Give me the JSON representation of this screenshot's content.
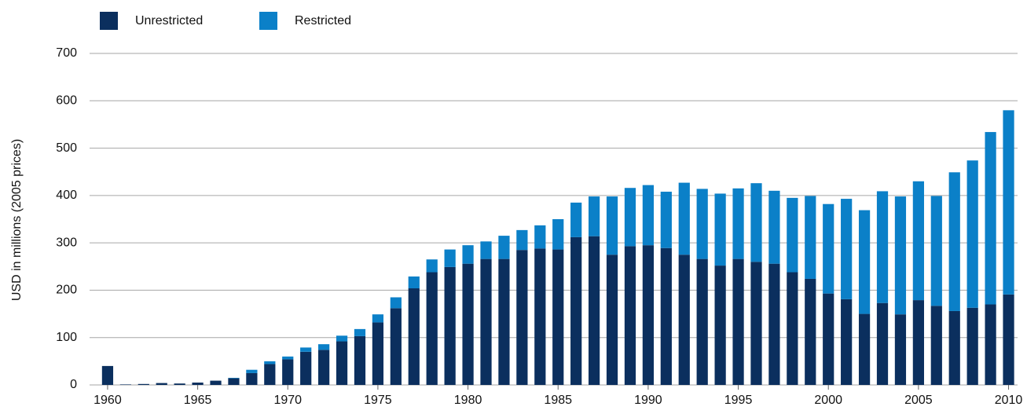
{
  "chart_data": {
    "type": "bar",
    "stacked": true,
    "y_label": "USD in millions (2005 prices)",
    "x": [
      1960,
      1961,
      1962,
      1963,
      1964,
      1965,
      1966,
      1967,
      1968,
      1969,
      1970,
      1971,
      1972,
      1973,
      1974,
      1975,
      1976,
      1977,
      1978,
      1979,
      1980,
      1981,
      1982,
      1983,
      1984,
      1985,
      1986,
      1987,
      1988,
      1989,
      1990,
      1991,
      1992,
      1993,
      1994,
      1995,
      1996,
      1997,
      1998,
      1999,
      2000,
      2001,
      2002,
      2003,
      2004,
      2005,
      2006,
      2007,
      2008,
      2009,
      2010
    ],
    "series": [
      {
        "name": "Unrestricted",
        "color": "#0b2f5e",
        "values": [
          40,
          1,
          2,
          4,
          3,
          5,
          9,
          14,
          25,
          44,
          54,
          70,
          74,
          92,
          103,
          132,
          162,
          204,
          238,
          249,
          256,
          266,
          266,
          285,
          288,
          286,
          312,
          314,
          275,
          293,
          295,
          289,
          275,
          266,
          252,
          266,
          260,
          256,
          238,
          224,
          193,
          181,
          150,
          173,
          149,
          179,
          167,
          156,
          163,
          170,
          191
        ]
      },
      {
        "name": "Restricted",
        "color": "#0b80c8",
        "values": [
          0,
          0,
          0,
          0,
          0,
          0,
          0,
          1,
          7,
          6,
          6,
          9,
          12,
          12,
          15,
          17,
          23,
          25,
          27,
          37,
          39,
          37,
          49,
          42,
          49,
          64,
          73,
          84,
          123,
          123,
          127,
          119,
          152,
          148,
          152,
          149,
          166,
          154,
          157,
          175,
          189,
          212,
          219,
          236,
          249,
          251,
          232,
          293,
          311,
          364,
          389
        ]
      }
    ],
    "xlim": [
      1959,
      2010.5
    ],
    "xticks": [
      1960,
      1965,
      1970,
      1975,
      1980,
      1985,
      1990,
      1995,
      2000,
      2005,
      2010
    ],
    "ylim": [
      0,
      700
    ],
    "yticks": [
      0,
      100,
      200,
      300,
      400,
      500,
      600,
      700
    ],
    "grid": true,
    "legend": "top-left"
  }
}
